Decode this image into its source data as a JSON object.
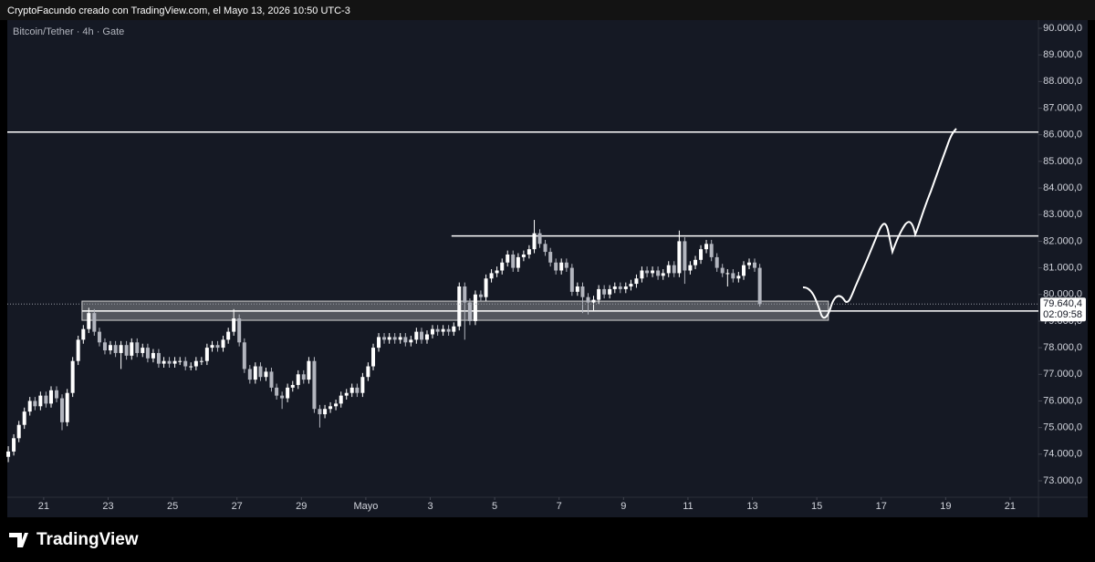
{
  "header": "CryptoFacundo creado con TradingView.com, el Mayo 13, 2026 10:50 UTC-3",
  "logo": "TradingView",
  "chart_data": {
    "type": "candlestick",
    "legend_text": "Bitcoin/Tether · 4h · Gate",
    "up_color": "#ffffff",
    "down_color": "#b2b5be",
    "level_color": "#ffffff",
    "grid": false,
    "xlim": [
      19.87,
      51.88
    ],
    "ylim": [
      72383,
      90308
    ],
    "xticks": [
      21,
      23,
      25,
      27,
      29,
      {
        "value": 31,
        "label": "Mayo"
      },
      {
        "value": 33,
        "label": "3"
      },
      {
        "value": 35,
        "label": "5"
      },
      {
        "value": 37,
        "label": "7"
      },
      {
        "value": 39,
        "label": "9"
      },
      {
        "value": 41,
        "label": "11"
      },
      {
        "value": 43,
        "label": "13"
      },
      {
        "value": 45,
        "label": "15"
      },
      {
        "value": 47,
        "label": "17"
      },
      {
        "value": 49,
        "label": "19"
      },
      {
        "value": 51,
        "label": "21"
      }
    ],
    "yticks": [
      {
        "value": 73000,
        "label": "73.000,0"
      },
      {
        "value": 74000,
        "label": "74.000,0"
      },
      {
        "value": 75000,
        "label": "75.000,0"
      },
      {
        "value": 76000,
        "label": "76.000,0"
      },
      {
        "value": 77000,
        "label": "77.000,0"
      },
      {
        "value": 78000,
        "label": "78.000,0"
      },
      {
        "value": 79000,
        "label": "79.000,0"
      },
      {
        "value": 80000,
        "label": "80.000,0"
      },
      {
        "value": 81000,
        "label": "81.000,0"
      },
      {
        "value": 82000,
        "label": "82.000,0"
      },
      {
        "value": 83000,
        "label": "83.000,0"
      },
      {
        "value": 84000,
        "label": "84.000,0"
      },
      {
        "value": 85000,
        "label": "85.000,0"
      },
      {
        "value": 86000,
        "label": "86.000,0"
      },
      {
        "value": 87000,
        "label": "87.000,0"
      },
      {
        "value": 88000,
        "label": "88.000,0"
      },
      {
        "value": 89000,
        "label": "89.000,0"
      },
      {
        "value": 90000,
        "label": "90.000,0"
      }
    ],
    "levels": [
      {
        "value": 86100,
        "from": 19.87
      },
      {
        "value": 82200,
        "from": 33.66
      },
      {
        "value": 79380,
        "from": 22.19
      }
    ],
    "zone": {
      "x": [
        22.19,
        45.36
      ],
      "y": [
        79030,
        79750
      ]
    },
    "last_price_label": "79.640,4",
    "countdown": "02:09:58",
    "x": [
      19.9,
      20.07,
      20.23,
      20.4,
      20.57,
      20.73,
      20.9,
      21.07,
      21.23,
      21.4,
      21.57,
      21.73,
      21.9,
      22.07,
      22.23,
      22.4,
      22.57,
      22.73,
      22.9,
      23.07,
      23.23,
      23.4,
      23.57,
      23.73,
      23.9,
      24.07,
      24.23,
      24.4,
      24.57,
      24.73,
      24.9,
      25.07,
      25.23,
      25.4,
      25.57,
      25.73,
      25.9,
      26.07,
      26.23,
      26.4,
      26.57,
      26.73,
      26.9,
      27.07,
      27.23,
      27.4,
      27.57,
      27.73,
      27.9,
      28.07,
      28.23,
      28.4,
      28.57,
      28.73,
      28.9,
      29.07,
      29.23,
      29.4,
      29.57,
      29.73,
      29.9,
      30.07,
      30.23,
      30.4,
      30.57,
      30.73,
      30.9,
      31.07,
      31.23,
      31.4,
      31.57,
      31.73,
      31.9,
      32.07,
      32.23,
      32.4,
      32.57,
      32.73,
      32.9,
      33.07,
      33.23,
      33.4,
      33.57,
      33.73,
      33.9,
      34.07,
      34.23,
      34.4,
      34.57,
      34.73,
      34.9,
      35.07,
      35.23,
      35.4,
      35.57,
      35.73,
      35.9,
      36.07,
      36.23,
      36.4,
      36.57,
      36.73,
      36.9,
      37.07,
      37.23,
      37.4,
      37.57,
      37.73,
      37.9,
      38.07,
      38.23,
      38.4,
      38.57,
      38.73,
      38.9,
      39.07,
      39.23,
      39.4,
      39.57,
      39.73,
      39.9,
      40.07,
      40.23,
      40.4,
      40.57,
      40.73,
      40.9,
      41.07,
      41.23,
      41.4,
      41.57,
      41.73,
      41.9,
      42.07,
      42.23,
      42.4,
      42.57,
      42.73,
      42.9,
      43.07,
      43.23
    ],
    "ohlc": [
      [
        73900,
        74300,
        73700,
        74100
      ],
      [
        74100,
        74750,
        73950,
        74600
      ],
      [
        74600,
        75250,
        74450,
        75100
      ],
      [
        75100,
        75750,
        74950,
        75600
      ],
      [
        75600,
        76150,
        75450,
        76000
      ],
      [
        76000,
        76150,
        75650,
        75800
      ],
      [
        75800,
        76350,
        75650,
        76200
      ],
      [
        76200,
        76350,
        75750,
        75900
      ],
      [
        75900,
        76550,
        75750,
        76400
      ],
      [
        76400,
        76550,
        75950,
        76100
      ],
      [
        76100,
        76250,
        74900,
        75200
      ],
      [
        75200,
        76450,
        75050,
        76300
      ],
      [
        76300,
        77650,
        76150,
        77500
      ],
      [
        77500,
        78450,
        77350,
        78300
      ],
      [
        78300,
        78850,
        78150,
        78700
      ],
      [
        78700,
        79500,
        78550,
        79300
      ],
      [
        79300,
        79450,
        78450,
        78600
      ],
      [
        78600,
        78750,
        78050,
        78200
      ],
      [
        78200,
        78350,
        77750,
        77900
      ],
      [
        77900,
        78250,
        77750,
        78100
      ],
      [
        78100,
        78250,
        77650,
        77800
      ],
      [
        77800,
        78250,
        77200,
        78100
      ],
      [
        78100,
        78250,
        77550,
        77700
      ],
      [
        77700,
        78350,
        77550,
        78200
      ],
      [
        78200,
        78350,
        77650,
        77800
      ],
      [
        77800,
        78150,
        77650,
        78000
      ],
      [
        78000,
        78150,
        77450,
        77600
      ],
      [
        77600,
        77950,
        77450,
        77800
      ],
      [
        77800,
        77950,
        77250,
        77400
      ],
      [
        77400,
        77650,
        77250,
        77500
      ],
      [
        77500,
        77650,
        77250,
        77400
      ],
      [
        77400,
        77650,
        77250,
        77500
      ],
      [
        77500,
        77650,
        77350,
        77500
      ],
      [
        77500,
        77650,
        77150,
        77300
      ],
      [
        77300,
        77450,
        77150,
        77300
      ],
      [
        77300,
        77650,
        77150,
        77500
      ],
      [
        77500,
        77650,
        77350,
        77500
      ],
      [
        77500,
        78150,
        77350,
        78000
      ],
      [
        78000,
        78250,
        77850,
        78100
      ],
      [
        78100,
        78250,
        77850,
        78000
      ],
      [
        78000,
        78450,
        77850,
        78300
      ],
      [
        78300,
        78750,
        78150,
        78600
      ],
      [
        78600,
        79450,
        78450,
        79100
      ],
      [
        79100,
        79250,
        78050,
        78200
      ],
      [
        78200,
        78350,
        77050,
        77200
      ],
      [
        77200,
        77350,
        76650,
        76800
      ],
      [
        76800,
        77450,
        76650,
        77300
      ],
      [
        77300,
        77450,
        76750,
        76900
      ],
      [
        76900,
        77250,
        76750,
        77100
      ],
      [
        77100,
        77250,
        76350,
        76500
      ],
      [
        76500,
        76650,
        76050,
        76200
      ],
      [
        76200,
        76350,
        75700,
        76100
      ],
      [
        76100,
        76650,
        75950,
        76500
      ],
      [
        76500,
        76750,
        76350,
        76600
      ],
      [
        76600,
        77150,
        76450,
        77000
      ],
      [
        77000,
        77150,
        76650,
        76800
      ],
      [
        76800,
        77650,
        76650,
        77500
      ],
      [
        77500,
        77650,
        75550,
        75700
      ],
      [
        75700,
        75850,
        75000,
        75500
      ],
      [
        75500,
        75850,
        75350,
        75700
      ],
      [
        75700,
        75950,
        75550,
        75800
      ],
      [
        75800,
        76050,
        75650,
        75900
      ],
      [
        75900,
        76350,
        75750,
        76200
      ],
      [
        76200,
        76450,
        76050,
        76300
      ],
      [
        76300,
        76650,
        76150,
        76500
      ],
      [
        76500,
        76650,
        76150,
        76300
      ],
      [
        76300,
        77050,
        76150,
        76900
      ],
      [
        76900,
        77450,
        76750,
        77300
      ],
      [
        77300,
        78150,
        77150,
        78000
      ],
      [
        78000,
        78550,
        77850,
        78400
      ],
      [
        78400,
        78550,
        78150,
        78300
      ],
      [
        78300,
        78550,
        78150,
        78400
      ],
      [
        78400,
        78550,
        78150,
        78300
      ],
      [
        78300,
        78550,
        78150,
        78400
      ],
      [
        78400,
        78550,
        78050,
        78200
      ],
      [
        78200,
        78450,
        78050,
        78300
      ],
      [
        78300,
        78750,
        78150,
        78600
      ],
      [
        78600,
        78750,
        78150,
        78300
      ],
      [
        78300,
        78650,
        78150,
        78500
      ],
      [
        78500,
        78850,
        78350,
        78700
      ],
      [
        78700,
        78850,
        78450,
        78600
      ],
      [
        78600,
        78850,
        78450,
        78700
      ],
      [
        78700,
        78850,
        78450,
        78600
      ],
      [
        78600,
        78950,
        78450,
        78800
      ],
      [
        78800,
        80450,
        78650,
        80300
      ],
      [
        80300,
        80450,
        78300,
        79700
      ],
      [
        79700,
        79850,
        78850,
        79000
      ],
      [
        79000,
        80150,
        78850,
        80000
      ],
      [
        80000,
        80150,
        79750,
        79900
      ],
      [
        79900,
        80750,
        79750,
        80600
      ],
      [
        80600,
        80950,
        80450,
        80800
      ],
      [
        80800,
        81050,
        80650,
        80900
      ],
      [
        80900,
        81350,
        80750,
        81200
      ],
      [
        81200,
        81650,
        81050,
        81500
      ],
      [
        81500,
        81650,
        80850,
        81000
      ],
      [
        81000,
        81550,
        80850,
        81400
      ],
      [
        81400,
        81650,
        81250,
        81500
      ],
      [
        81500,
        81850,
        81350,
        81700
      ],
      [
        81700,
        82800,
        81550,
        82300
      ],
      [
        82300,
        82450,
        81750,
        81900
      ],
      [
        81900,
        82050,
        81450,
        81600
      ],
      [
        81600,
        81750,
        81050,
        81200
      ],
      [
        81200,
        81350,
        80750,
        80900
      ],
      [
        80900,
        81350,
        80750,
        81200
      ],
      [
        81200,
        81350,
        80850,
        81000
      ],
      [
        81000,
        81150,
        79950,
        80100
      ],
      [
        80100,
        80450,
        79950,
        80300
      ],
      [
        80300,
        80450,
        79300,
        79900
      ],
      [
        79900,
        80050,
        79250,
        79700
      ],
      [
        79700,
        79950,
        79400,
        79800
      ],
      [
        79800,
        80350,
        79650,
        80200
      ],
      [
        80200,
        80350,
        79850,
        80000
      ],
      [
        80000,
        80350,
        79850,
        80200
      ],
      [
        80200,
        80450,
        80050,
        80300
      ],
      [
        80300,
        80450,
        80050,
        80200
      ],
      [
        80200,
        80450,
        80050,
        80300
      ],
      [
        80300,
        80550,
        80150,
        80400
      ],
      [
        80400,
        80750,
        80250,
        80600
      ],
      [
        80600,
        81050,
        80450,
        80900
      ],
      [
        80900,
        81050,
        80650,
        80800
      ],
      [
        80800,
        81050,
        80650,
        80900
      ],
      [
        80900,
        81050,
        80550,
        80700
      ],
      [
        80700,
        80950,
        80550,
        80800
      ],
      [
        80800,
        81250,
        80650,
        81100
      ],
      [
        81100,
        81250,
        80650,
        80800
      ],
      [
        80800,
        82400,
        80650,
        82000
      ],
      [
        82000,
        82150,
        80400,
        80900
      ],
      [
        80900,
        81250,
        80750,
        81100
      ],
      [
        81100,
        81450,
        80950,
        81300
      ],
      [
        81300,
        81850,
        81150,
        81700
      ],
      [
        81700,
        82050,
        81550,
        81900
      ],
      [
        81900,
        82050,
        81250,
        81400
      ],
      [
        81400,
        81550,
        80850,
        81000
      ],
      [
        81000,
        81150,
        80650,
        80800
      ],
      [
        80800,
        80950,
        80300,
        80800
      ],
      [
        80800,
        80950,
        80450,
        80600
      ],
      [
        80600,
        80850,
        80450,
        80700
      ],
      [
        80700,
        81250,
        80550,
        81100
      ],
      [
        81100,
        81350,
        80950,
        81200
      ],
      [
        81200,
        81350,
        80850,
        81000
      ],
      [
        81000,
        81150,
        79550,
        79640.4
      ]
    ]
  }
}
